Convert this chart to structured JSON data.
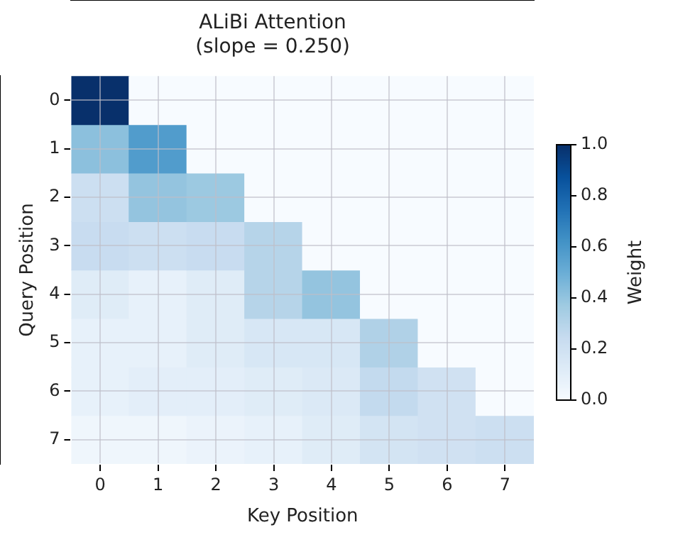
{
  "chart_data": {
    "type": "heatmap",
    "title": "ALiBi Attention",
    "subtitle": "(slope = 0.250)",
    "xlabel": "Key Position",
    "ylabel": "Query Position",
    "clabel": "Weight",
    "categories": [
      "0",
      "1",
      "2",
      "3",
      "4",
      "5",
      "6",
      "7"
    ],
    "y_categories": [
      "0",
      "1",
      "2",
      "3",
      "4",
      "5",
      "6",
      "7"
    ],
    "cells": [
      [
        1.0,
        0,
        0,
        0,
        0,
        0,
        0,
        0
      ],
      [
        0.42,
        0.58,
        0,
        0,
        0,
        0,
        0,
        0
      ],
      [
        0.22,
        0.4,
        0.38,
        0,
        0,
        0,
        0,
        0
      ],
      [
        0.24,
        0.22,
        0.24,
        0.3,
        0,
        0,
        0,
        0
      ],
      [
        0.12,
        0.08,
        0.12,
        0.3,
        0.4,
        0,
        0,
        0
      ],
      [
        0.08,
        0.08,
        0.12,
        0.16,
        0.16,
        0.32,
        0,
        0
      ],
      [
        0.08,
        0.1,
        0.1,
        0.12,
        0.14,
        0.26,
        0.2,
        0
      ],
      [
        0.04,
        0.04,
        0.06,
        0.08,
        0.12,
        0.18,
        0.2,
        0.22
      ]
    ],
    "clim": [
      0,
      1
    ],
    "cticks": [
      {
        "value": 0,
        "label": "0.0"
      },
      {
        "value": 0.2,
        "label": "0.2"
      },
      {
        "value": 0.4,
        "label": "0.4"
      },
      {
        "value": 0.6,
        "label": "0.6"
      },
      {
        "value": 0.8,
        "label": "0.8"
      },
      {
        "value": 1,
        "label": "1.0"
      }
    ],
    "grid": true
  }
}
